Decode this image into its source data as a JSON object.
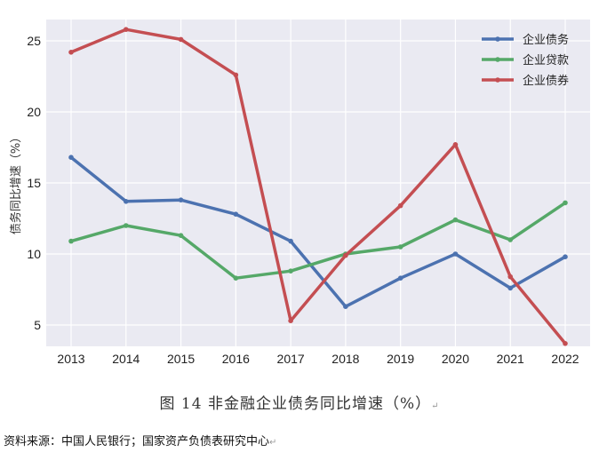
{
  "chart_data": {
    "type": "line",
    "ylabel": "债务同比增速（%）",
    "categories": [
      "2013",
      "2014",
      "2015",
      "2016",
      "2017",
      "2018",
      "2019",
      "2020",
      "2021",
      "2022"
    ],
    "ylim": [
      3.5,
      26.5
    ],
    "yticks": [
      5,
      10,
      15,
      20,
      25
    ],
    "grid": true,
    "legend_position": "top-right",
    "background": "#eaeaf2",
    "series": [
      {
        "name": "企业债务",
        "color": "#4c72b0",
        "values": [
          16.8,
          13.7,
          13.8,
          12.8,
          10.9,
          6.3,
          8.3,
          10.0,
          7.6,
          9.8
        ]
      },
      {
        "name": "企业贷款",
        "color": "#55a868",
        "values": [
          10.9,
          12.0,
          11.3,
          8.3,
          8.8,
          10.0,
          10.5,
          12.4,
          11.0,
          13.6
        ]
      },
      {
        "name": "企业债券",
        "color": "#c44e52",
        "values": [
          24.2,
          25.8,
          25.1,
          22.6,
          5.3,
          9.9,
          13.4,
          17.7,
          8.4,
          3.7
        ]
      }
    ]
  },
  "caption": "图 14  非金融企业债务同比增速（%）",
  "source": "资料来源：中国人民银行；国家资产负债表研究中心",
  "marks": {
    "caption_end": "↵",
    "source_end": "↵"
  }
}
